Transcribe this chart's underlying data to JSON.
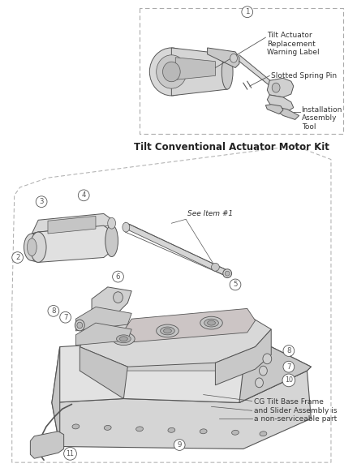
{
  "bg_color": "#ffffff",
  "line_color": "#555555",
  "text_color": "#333333",
  "gray_fill": "#e0e0e0",
  "gray_dark": "#c0c0c0",
  "gray_mid": "#d0d0d0",
  "title_text": "Tilt Conventional Actuator Motor Kit",
  "title_fontsize": 8.5,
  "callout_fontsize": 6.5,
  "note_text": "CG Tilt Base Frame\nand Slider Assembly is\na non-serviceable part",
  "see_item_text": "See Item #1",
  "box1_tilt_actuator": "Tilt Actuator\nReplacement\nWarning Label",
  "box1_slotted_pin": "Slotted Spring Pin",
  "box1_install_tool": "Installation\nAssembly\nTool"
}
